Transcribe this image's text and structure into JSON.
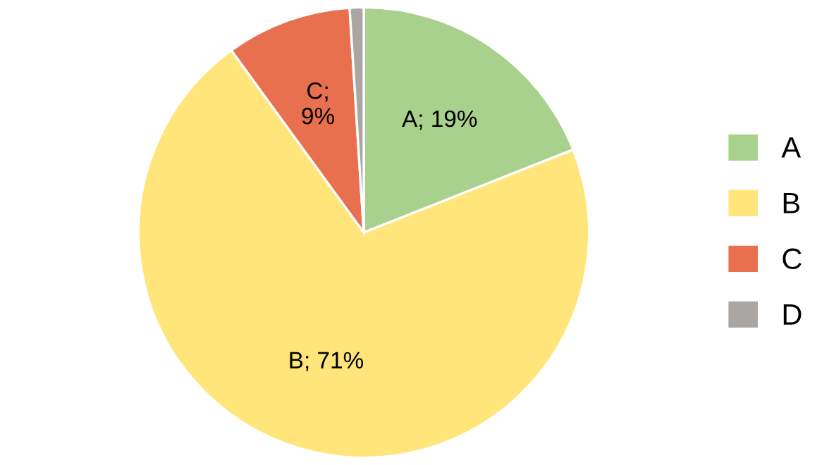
{
  "chart_data": {
    "type": "pie",
    "categories": [
      "A",
      "B",
      "C",
      "D"
    ],
    "values": [
      19,
      71,
      9,
      1
    ],
    "colors": [
      "#a9d18e",
      "#ffe57a",
      "#e8704f",
      "#aaa6a4"
    ],
    "value_labels": [
      "A; 19%",
      "B; 71%",
      "C;\n9%",
      null
    ],
    "legend": "right"
  }
}
